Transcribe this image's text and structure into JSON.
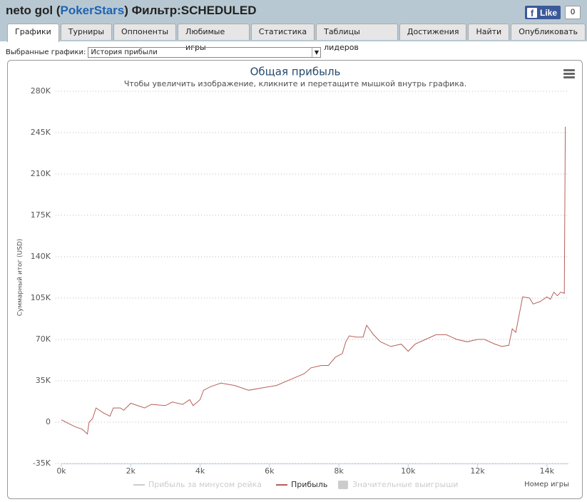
{
  "header": {
    "title_parts": [
      "neto gol (",
      "PokerStars",
      ") Фильтр:SCHEDULED"
    ],
    "like": "Like",
    "like_count": "0"
  },
  "tabs": [
    "Графики",
    "Турниры",
    "Оппоненты",
    "Любимые игры",
    "Статистика",
    "Таблицы лидеров",
    "Достижения",
    "Найти",
    "Опубликовать"
  ],
  "selector": {
    "label": "Выбранные графики:",
    "value": "История прибыли"
  },
  "chart_data": {
    "type": "line",
    "title": "Общая прибыль",
    "subtitle": "Чтобы увеличить изображение, кликните и перетащите мышкой внутрь графика.",
    "y_label": "Суммарный итог (USD)",
    "x_label": "Номер игры",
    "x": [
      0,
      200,
      400,
      600,
      750,
      800,
      900,
      1000,
      1200,
      1400,
      1500,
      1700,
      1800,
      2000,
      2400,
      2600,
      3000,
      3200,
      3500,
      3700,
      3800,
      4000,
      4100,
      4300,
      4600,
      5000,
      5400,
      5800,
      6200,
      6600,
      7000,
      7200,
      7500,
      7700,
      7900,
      8100,
      8200,
      8300,
      8500,
      8700,
      8800,
      9000,
      9200,
      9500,
      9800,
      10000,
      10200,
      10500,
      10800,
      11100,
      11400,
      11700,
      12000,
      12200,
      12500,
      12700,
      12900,
      13000,
      13100,
      13300,
      13500,
      13600,
      13800,
      14000,
      14100,
      14200,
      14300,
      14400,
      14500,
      14530
    ],
    "series": [
      {
        "name": "Прибыль",
        "color": "#b5605a",
        "values": [
          2000,
          -1000,
          -4000,
          -6000,
          -10000,
          0,
          3000,
          12000,
          8000,
          5000,
          12000,
          12000,
          10000,
          16000,
          12000,
          15000,
          14000,
          17000,
          15000,
          19000,
          14000,
          19000,
          27000,
          30000,
          33000,
          31000,
          27000,
          29000,
          31000,
          36000,
          41000,
          46000,
          48000,
          48000,
          55000,
          58000,
          68000,
          73000,
          72000,
          72000,
          82000,
          74000,
          68000,
          64000,
          66000,
          60000,
          66000,
          70000,
          74000,
          74000,
          70000,
          68000,
          70000,
          70000,
          66000,
          64000,
          65000,
          79000,
          76000,
          106000,
          105000,
          100000,
          102000,
          106000,
          104000,
          110000,
          107000,
          110000,
          109000,
          250000
        ]
      }
    ],
    "hidden_series": [
      {
        "name": "Прибыль за минусом рейка",
        "color": "#cccccc",
        "symbol": "line"
      },
      {
        "name": "Значительные выигрыши",
        "color": "#cccccc",
        "symbol": "square"
      }
    ],
    "xlim": [
      0,
      14620
    ],
    "ylim": [
      -35000,
      280000
    ],
    "xticks": [
      {
        "value": 0,
        "label": "0k"
      },
      {
        "value": 2000,
        "label": "2k"
      },
      {
        "value": 4000,
        "label": "4k"
      },
      {
        "value": 6000,
        "label": "6k"
      },
      {
        "value": 8000,
        "label": "8k"
      },
      {
        "value": 10000,
        "label": "10k"
      },
      {
        "value": 12000,
        "label": "12k"
      },
      {
        "value": 14000,
        "label": "14k"
      }
    ],
    "yticks": [
      {
        "value": -35000,
        "label": "-35K"
      },
      0,
      {
        "value": 35000,
        "label": "35K"
      },
      {
        "value": 70000,
        "label": "70K"
      },
      {
        "value": 105000,
        "label": "105K"
      },
      {
        "value": 140000,
        "label": "140K"
      },
      {
        "value": 175000,
        "label": "175K"
      },
      {
        "value": 210000,
        "label": "210K"
      },
      {
        "value": 245000,
        "label": "245K"
      },
      {
        "value": 280000,
        "label": "280K"
      }
    ],
    "grid": true
  }
}
